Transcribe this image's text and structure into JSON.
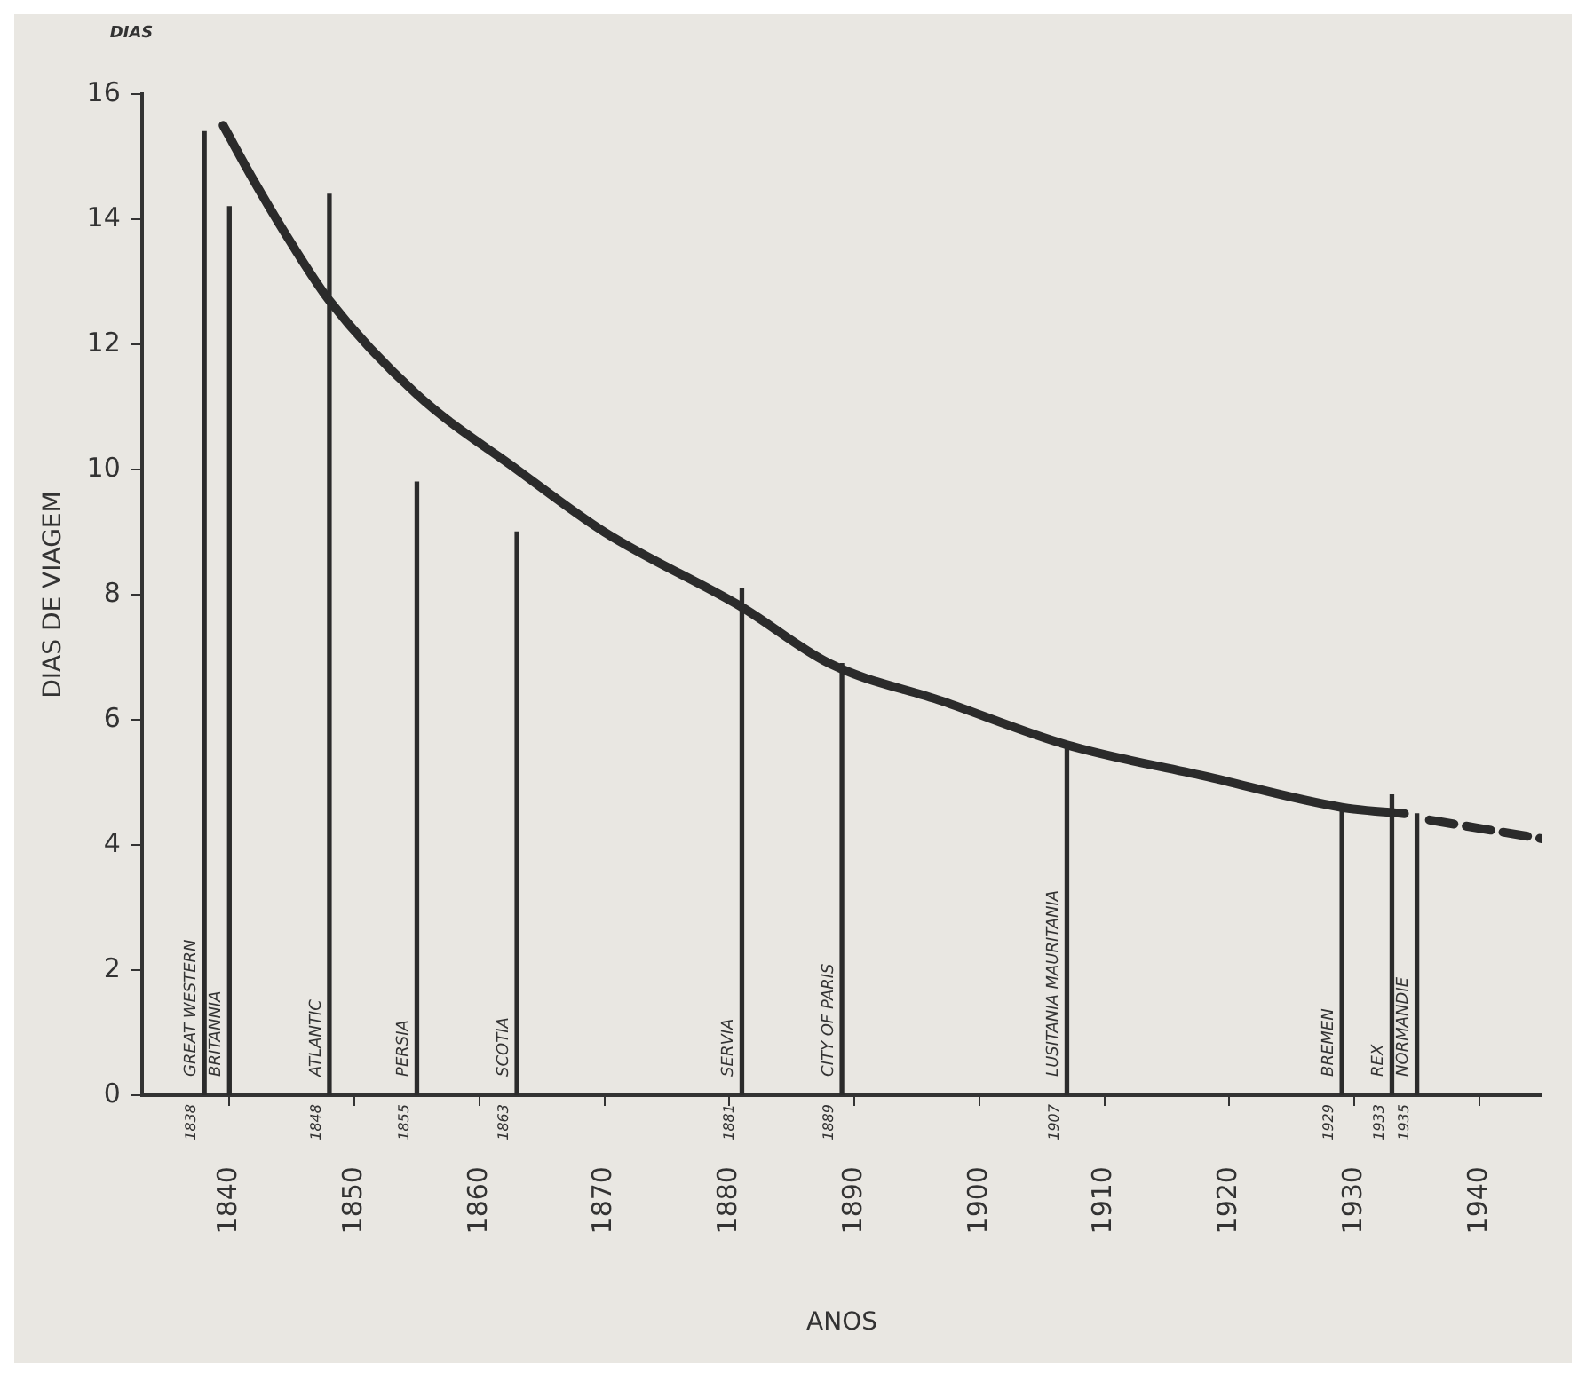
{
  "chart_data": {
    "type": "bar",
    "xlabel": "ANOS",
    "ylabel": "DIAS DE VIAGEM",
    "x": [
      1838,
      1840,
      1848,
      1855,
      1863,
      1881,
      1889,
      1907,
      1929,
      1933,
      1935
    ],
    "series": [
      {
        "color": "#2b2b2b",
        "values": [
          15.4,
          14.2,
          14.4,
          9.8,
          9.0,
          8.1,
          6.9,
          5.6,
          4.6,
          4.8,
          4.5
        ]
      },
      {
        "type": "line",
        "color": "#2b2b2b",
        "line_style": "solid",
        "x": [
          1839.5,
          1842,
          1845,
          1848,
          1855,
          1863,
          1870,
          1881,
          1888,
          1897,
          1907,
          1918,
          1929,
          1934
        ],
        "values": [
          15.5,
          14.6,
          13.6,
          12.7,
          11.2,
          10.0,
          9.0,
          7.8,
          6.9,
          6.3,
          5.6,
          5.1,
          4.6,
          4.5
        ]
      },
      {
        "type": "line",
        "color": "#2b2b2b",
        "line_style": "dashed",
        "x": [
          1936,
          1945
        ],
        "values": [
          4.4,
          4.1
        ]
      }
    ],
    "xlim": [
      1833,
      1945
    ],
    "xticks": [
      1840,
      1850,
      1860,
      1870,
      1880,
      1890,
      1900,
      1910,
      1920,
      1930,
      1940
    ],
    "ylim": [
      0,
      16
    ],
    "yticks": [
      0,
      2,
      4,
      6,
      8,
      10,
      12,
      14,
      16
    ],
    "grid": false,
    "legend": false,
    "marker": "none",
    "annotations": [
      "DIAS",
      {
        "text": "GREAT WESTERN",
        "x": 1838,
        "y": 0.3
      },
      {
        "text": "BRITANNIA",
        "x": 1840,
        "y": 0.3
      },
      {
        "text": "ATLANTIC",
        "x": 1848,
        "y": 0.3
      },
      {
        "text": "PERSIA",
        "x": 1855,
        "y": 0.3
      },
      {
        "text": "SCOTIA",
        "x": 1863,
        "y": 0.3
      },
      {
        "text": "SERVIA",
        "x": 1881,
        "y": 0.3
      },
      {
        "text": "CITY OF PARIS",
        "x": 1889,
        "y": 0.3
      },
      {
        "text": "LUSITANIA MAURITANIA",
        "x": 1907,
        "y": 0.3
      },
      {
        "text": "BREMEN",
        "x": 1929,
        "y": 0.3
      },
      {
        "text": "REX",
        "x": 1933,
        "y": 0.3
      },
      {
        "text": "NORMANDIE",
        "x": 1935,
        "y": 0.3
      },
      {
        "text": "1838",
        "x": 1838,
        "y": 0
      },
      {
        "text": "1848",
        "x": 1848,
        "y": 0
      },
      {
        "text": "1855",
        "x": 1855,
        "y": 0
      },
      {
        "text": "1863",
        "x": 1863,
        "y": 0
      },
      {
        "text": "1881",
        "x": 1881,
        "y": 0
      },
      {
        "text": "1889",
        "x": 1889,
        "y": 0
      },
      {
        "text": "1907",
        "x": 1907,
        "y": 0
      },
      {
        "text": "1929",
        "x": 1929,
        "y": 0
      },
      {
        "text": "1933",
        "x": 1933,
        "y": 0
      },
      {
        "text": "1935",
        "x": 1935,
        "y": 0
      }
    ]
  }
}
